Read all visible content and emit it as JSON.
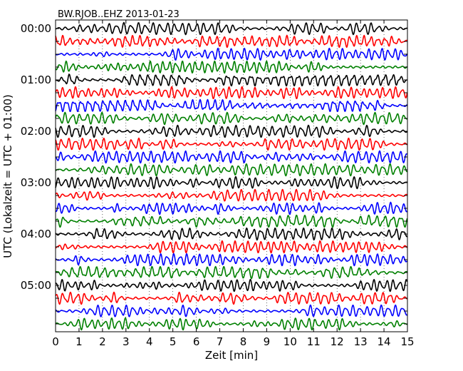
{
  "chart_data": {
    "type": "line",
    "title": "BW.RJOB..EHZ 2013-01-23",
    "xlabel": "Zeit  [min]",
    "ylabel": "UTC (Lokalzeit = UTC + 01:00)",
    "xlim": [
      0,
      15
    ],
    "x_ticks": [
      "0",
      "1",
      "2",
      "3",
      "4",
      "5",
      "6",
      "7",
      "8",
      "9",
      "10",
      "11",
      "12",
      "13",
      "14",
      "15"
    ],
    "y_ticks": [
      "00:00",
      "01:00",
      "02:00",
      "03:00",
      "04:00",
      "05:00"
    ],
    "y_tick_rows": [
      0,
      4,
      8,
      12,
      16,
      20
    ],
    "grid": true,
    "row_count": 24,
    "row_interval_min": 15,
    "colors": [
      "#000000",
      "#ff0000",
      "#0000ff",
      "#008000"
    ]
  }
}
